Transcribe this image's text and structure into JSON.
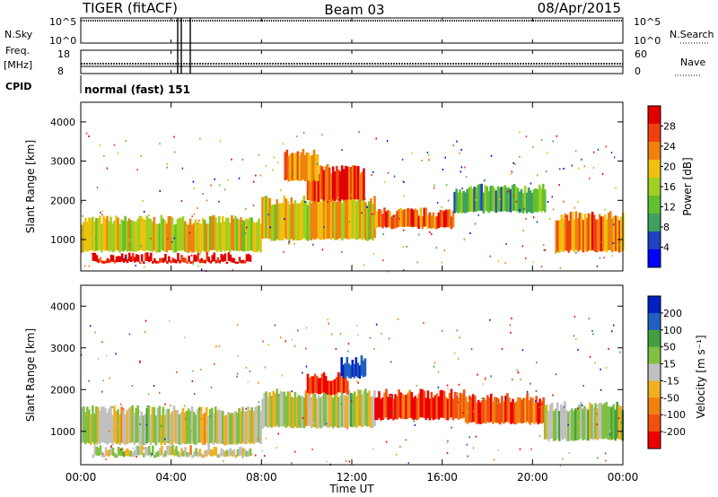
{
  "header": {
    "title": "TIGER (fitACF)",
    "beam": "Beam 03",
    "date": "08/Apr/2015"
  },
  "aux_panels": {
    "nsky_label": "N.Sky",
    "nsky_ticks": [
      "10^5",
      "10^0"
    ],
    "nsearch_label": "N.Search",
    "nsearch_ticks": [
      "10^5",
      "10^0"
    ],
    "freq_label_line1": "Freq.",
    "freq_label_line2": "[MHz]",
    "freq_ticks": [
      "18",
      "8"
    ],
    "nave_label": "Nave",
    "nave_ticks": [
      "60",
      "0"
    ],
    "cpid_label": "CPID",
    "cpid_value": "normal (fast) 151"
  },
  "chart_data": [
    {
      "type": "heatmap",
      "name": "power",
      "ylabel": "Slant Range [km]",
      "yticks": [
        "4000",
        "3000",
        "2000",
        "1000"
      ],
      "ylim": [
        200,
        4500
      ],
      "colorbar_label": "Power [dB]",
      "colorbar_ticks": [
        "28",
        "24",
        "20",
        "16",
        "12",
        "8",
        "4"
      ],
      "colormap": [
        "#0000ff",
        "#2040c0",
        "#40a060",
        "#60c030",
        "#a0d020",
        "#f0c010",
        "#f08010",
        "#f04010",
        "#e00000"
      ],
      "bands": [
        {
          "x0": 0.0,
          "x1": 8.0,
          "y0": 700,
          "y1": 1500,
          "level": 0.55
        },
        {
          "x0": 8.0,
          "x1": 13.0,
          "y0": 1000,
          "y1": 2000,
          "level": 0.6
        },
        {
          "x0": 13.0,
          "x1": 16.5,
          "y0": 1300,
          "y1": 1700,
          "level": 0.8
        },
        {
          "x0": 10.0,
          "x1": 12.5,
          "y0": 2000,
          "y1": 2800,
          "level": 0.85
        },
        {
          "x0": 9.0,
          "x1": 10.5,
          "y0": 2500,
          "y1": 3200,
          "level": 0.7
        },
        {
          "x0": 16.5,
          "x1": 20.5,
          "y0": 1700,
          "y1": 2300,
          "level": 0.35
        },
        {
          "x0": 21.0,
          "x1": 24.0,
          "y0": 700,
          "y1": 1600,
          "level": 0.75
        },
        {
          "x0": 0.5,
          "x1": 7.5,
          "y0": 420,
          "y1": 560,
          "level": 0.95
        }
      ]
    },
    {
      "type": "heatmap",
      "name": "velocity",
      "ylabel": "Slant Range [km]",
      "yticks": [
        "4000",
        "3000",
        "2000",
        "1000"
      ],
      "ylim": [
        200,
        4500
      ],
      "colorbar_label": "Velocity [m s⁻¹]",
      "colorbar_ticks": [
        "200",
        "100",
        "50",
        "15",
        "-15",
        "-50",
        "-100",
        "-200"
      ],
      "colormap": [
        "#ee0000",
        "#f05010",
        "#f08010",
        "#f0b020",
        "#c0c0c0",
        "#80c040",
        "#40a040",
        "#2060c0",
        "#0020c0"
      ],
      "bands": [
        {
          "x0": 0.0,
          "x1": 8.0,
          "y0": 700,
          "y1": 1500,
          "level": 0.5
        },
        {
          "x0": 8.0,
          "x1": 13.0,
          "y0": 1100,
          "y1": 1900,
          "level": 0.5
        },
        {
          "x0": 13.0,
          "x1": 17.0,
          "y0": 1300,
          "y1": 1900,
          "level": 0.15
        },
        {
          "x0": 10.0,
          "x1": 11.8,
          "y0": 1900,
          "y1": 2300,
          "level": 0.05
        },
        {
          "x0": 11.5,
          "x1": 12.6,
          "y0": 2300,
          "y1": 2700,
          "level": 0.92
        },
        {
          "x0": 17.0,
          "x1": 20.5,
          "y0": 1200,
          "y1": 1800,
          "level": 0.2
        },
        {
          "x0": 20.5,
          "x1": 24.0,
          "y0": 800,
          "y1": 1600,
          "level": 0.55
        },
        {
          "x0": 0.5,
          "x1": 7.5,
          "y0": 400,
          "y1": 560,
          "level": 0.5
        }
      ]
    }
  ],
  "xaxis": {
    "label": "Time UT",
    "ticks": [
      "00:00",
      "04:00",
      "08:00",
      "12:00",
      "16:00",
      "20:00",
      "00:00"
    ],
    "range_hours": [
      0,
      24
    ]
  }
}
